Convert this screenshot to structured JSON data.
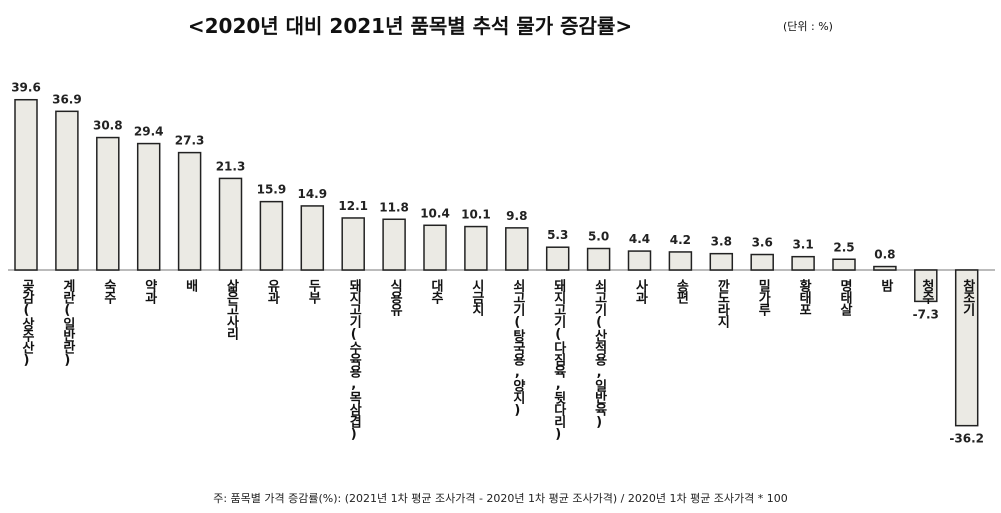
{
  "chart_data": {
    "type": "bar",
    "title": "<2020년 대비 2021년 품목별 추석 물가 증감률>",
    "unit_label": "(단위 : %)",
    "footnote": "주: 품목별 가격 증감률(%): (2021년 1차 평균 조사가격 - 2020년 1차 평균 조사가격) / 2020년 1차 평균 조사가격 * 100",
    "xlabel": "",
    "ylabel": "",
    "categories": [
      "곶감(상주산)",
      "계란(일반란)",
      "숙주",
      "약과",
      "배",
      "삶은고사리",
      "유과",
      "두부",
      "돼지고기(수육용,목삼겹)",
      "식용유",
      "대추",
      "시금치",
      "쇠고기(탕국용,양지)",
      "돼지고기(다짐육,뒷다리)",
      "쇠고기(산적용,일반육)",
      "사과",
      "송편",
      "깐도라지",
      "밀가루",
      "황태포",
      "명태살",
      "밤",
      "청주",
      "참조기"
    ],
    "values": [
      39.6,
      36.9,
      30.8,
      29.4,
      27.3,
      21.3,
      15.9,
      14.9,
      12.1,
      11.8,
      10.4,
      10.1,
      9.8,
      5.3,
      5.0,
      4.4,
      4.2,
      3.8,
      3.6,
      3.1,
      2.5,
      0.8,
      -7.3,
      -36.2
    ],
    "value_labels": [
      "39.6",
      "36.9",
      "30.8",
      "29.4",
      "27.3",
      "21.3",
      "15.9",
      "14.9",
      "12.1",
      "11.8",
      "10.4",
      "10.1",
      "9.8",
      "5.3",
      "5.0",
      "4.4",
      "4.2",
      "3.8",
      "3.6",
      "3.1",
      "2.5",
      "0.8",
      "-7.3",
      "-36.2"
    ],
    "grid": false,
    "colors": {
      "bar_fill": "#ebeae4",
      "bar_stroke": "#222222",
      "baseline": "#bbbbbb"
    }
  }
}
